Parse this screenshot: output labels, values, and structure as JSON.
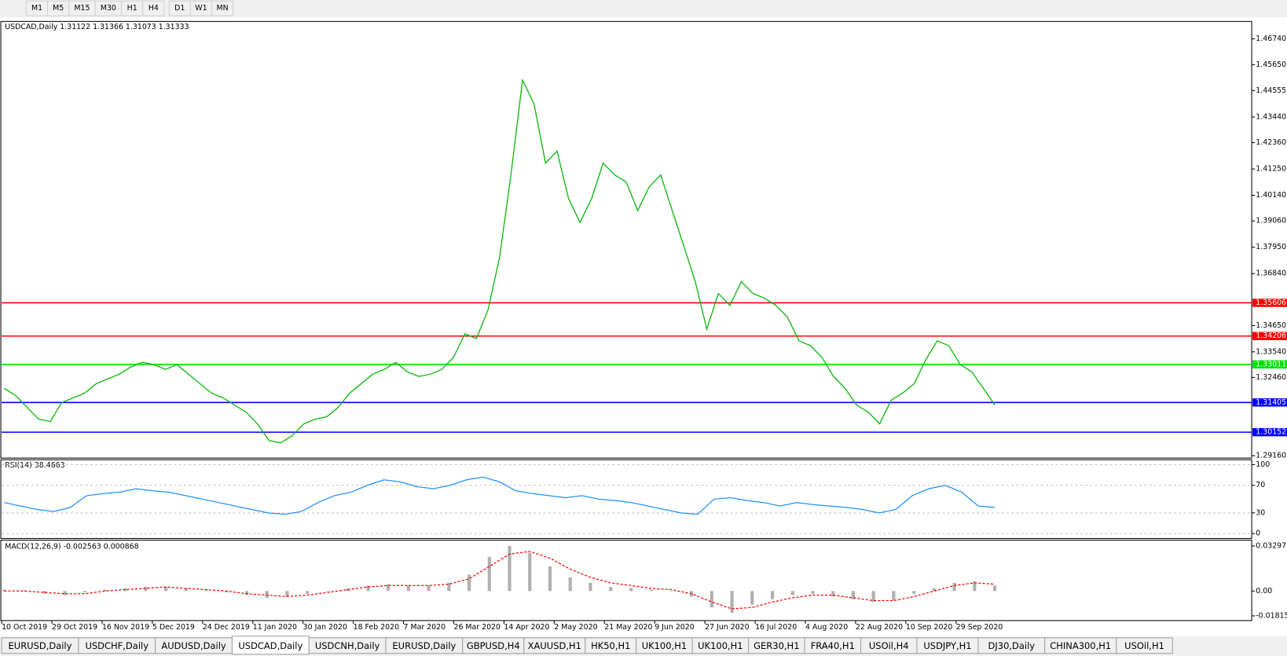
{
  "toolbar": {
    "timeframes": [
      "M1",
      "M5",
      "M15",
      "M30",
      "H1",
      "H4",
      "D1",
      "W1",
      "MN"
    ]
  },
  "chart_data": [
    {
      "type": "line",
      "title": "USDCAD,Daily  1.31122 1.31366 1.31073 1.31333",
      "color": "#00b400",
      "x_labels": [
        "10 Oct 2019",
        "29 Oct 2019",
        "16 Nov 2019",
        "5 Dec 2019",
        "24 Dec 2019",
        "11 Jan 2020",
        "30 Jan 2020",
        "18 Feb 2020",
        "7 Mar 2020",
        "26 Mar 2020",
        "14 Apr 2020",
        "2 May 2020",
        "21 May 2020",
        "9 Jun 2020",
        "27 Jun 2020",
        "16 Jul 2020",
        "4 Aug 2020",
        "22 Aug 2020",
        "10 Sep 2020",
        "29 Sep 2020"
      ],
      "values": [
        1.32,
        1.317,
        1.312,
        1.307,
        1.306,
        1.314,
        1.316,
        1.318,
        1.322,
        1.324,
        1.326,
        1.329,
        1.331,
        1.33,
        1.328,
        1.33,
        1.326,
        1.322,
        1.318,
        1.316,
        1.313,
        1.31,
        1.305,
        1.298,
        1.297,
        1.3,
        1.305,
        1.307,
        1.308,
        1.312,
        1.318,
        1.322,
        1.326,
        1.328,
        1.331,
        1.327,
        1.325,
        1.326,
        1.328,
        1.333,
        1.343,
        1.341,
        1.353,
        1.375,
        1.41,
        1.45,
        1.44,
        1.415,
        1.42,
        1.4,
        1.39,
        1.4,
        1.415,
        1.41,
        1.407,
        1.395,
        1.405,
        1.41,
        1.395,
        1.38,
        1.365,
        1.345,
        1.36,
        1.355,
        1.365,
        1.36,
        1.358,
        1.355,
        1.35,
        1.34,
        1.338,
        1.333,
        1.325,
        1.32,
        1.313,
        1.31,
        1.305,
        1.315,
        1.318,
        1.322,
        1.332,
        1.34,
        1.338,
        1.33,
        1.327,
        1.32,
        1.313
      ],
      "ylim": [
        1.2906,
        1.4747
      ],
      "yticks": [
        {
          "value": 1.4674,
          "label": "1.46740"
        },
        {
          "value": 1.4565,
          "label": "1.45650"
        },
        {
          "value": 1.44555,
          "label": "1.44555"
        },
        {
          "value": 1.4344,
          "label": "1.43440"
        },
        {
          "value": 1.4236,
          "label": "1.42360"
        },
        {
          "value": 1.4125,
          "label": "1.41250"
        },
        {
          "value": 1.4014,
          "label": "1.40140"
        },
        {
          "value": 1.3906,
          "label": "1.39060"
        },
        {
          "value": 1.3795,
          "label": "1.37950"
        },
        {
          "value": 1.3684,
          "label": "1.36840"
        },
        {
          "value": 1.3465,
          "label": "1.34650"
        },
        {
          "value": 1.3354,
          "label": "1.33540"
        },
        {
          "value": 1.3246,
          "label": "1.32460"
        },
        {
          "value": 1.2916,
          "label": "1.29160"
        }
      ],
      "levels": [
        {
          "value": 1.35606,
          "color": "#ff0000"
        },
        {
          "value": 1.34206,
          "color": "#ff0000"
        },
        {
          "value": 1.33011,
          "color": "#00e000"
        },
        {
          "value": 1.31405,
          "color": "#0000ff"
        },
        {
          "value": 1.30152,
          "color": "#0000ff"
        }
      ]
    },
    {
      "type": "line",
      "title": "RSI(14) 38.4663",
      "color": "#1e90ff",
      "values": [
        45,
        40,
        35,
        32,
        38,
        55,
        58,
        60,
        65,
        62,
        60,
        55,
        50,
        45,
        40,
        35,
        30,
        28,
        32,
        45,
        55,
        60,
        70,
        78,
        75,
        68,
        65,
        70,
        78,
        82,
        75,
        62,
        58,
        55,
        52,
        55,
        50,
        48,
        45,
        40,
        35,
        30,
        28,
        50,
        52,
        48,
        45,
        40,
        45,
        42,
        40,
        38,
        35,
        30,
        35,
        55,
        65,
        70,
        60,
        40,
        38
      ],
      "ylim": [
        -7.1,
        107.1
      ],
      "yticks": [
        100,
        70,
        30,
        0
      ]
    },
    {
      "type": "macd",
      "title": "MACD(12,26,9) -0.002563 0.000868",
      "color": "#b0b0b0",
      "signal_color": "#ff0000",
      "values": [
        0.001,
        0.0005,
        -0.002,
        -0.003,
        -0.001,
        0.001,
        0.002,
        0.003,
        0.003,
        0.002,
        0.001,
        -0.001,
        -0.003,
        -0.005,
        -0.004,
        -0.002,
        0,
        0.002,
        0.004,
        0.005,
        0.004,
        0.004,
        0.006,
        0.012,
        0.025,
        0.033,
        0.028,
        0.018,
        0.01,
        0.006,
        0.003,
        0.002,
        0.001,
        0,
        -0.004,
        -0.012,
        -0.016,
        -0.01,
        -0.006,
        -0.003,
        -0.002,
        -0.004,
        -0.006,
        -0.008,
        -0.007,
        -0.002,
        0.002,
        0.006,
        0.007,
        0.004
      ],
      "signal_values": [
        0,
        0,
        -0.001,
        -0.002,
        -0.002,
        0,
        0.001,
        0.002,
        0.003,
        0.002,
        0.001,
        0,
        -0.002,
        -0.003,
        -0.004,
        -0.003,
        -0.001,
        0.001,
        0.003,
        0.004,
        0.004,
        0.004,
        0.005,
        0.009,
        0.018,
        0.027,
        0.029,
        0.024,
        0.016,
        0.01,
        0.006,
        0.004,
        0.002,
        0.001,
        -0.002,
        -0.008,
        -0.013,
        -0.012,
        -0.008,
        -0.005,
        -0.003,
        -0.003,
        -0.005,
        -0.007,
        -0.007,
        -0.004,
        0,
        0.004,
        0.006,
        0.005
      ],
      "ylim": [
        -0.0216,
        0.0372
      ],
      "yticks": [
        0.032972,
        {
          "value": 0,
          "label": "0.00"
        },
        -0.018154
      ]
    }
  ],
  "tabs": {
    "items": [
      "EURUSD,Daily",
      "USDCHF,Daily",
      "AUDUSD,Daily",
      "USDCAD,Daily",
      "USDCNH,Daily",
      "EURUSD,Daily",
      "GBPUSD,H4",
      "XAUUSD,H1",
      "HK50,H1",
      "UK100,H1",
      "UK100,H1",
      "GER30,H1",
      "FRA40,H1",
      "USOil,H4",
      "USDJPY,H1",
      "DJ30,Daily",
      "CHINA300,H1",
      "USOil,H1"
    ],
    "active": 3
  }
}
